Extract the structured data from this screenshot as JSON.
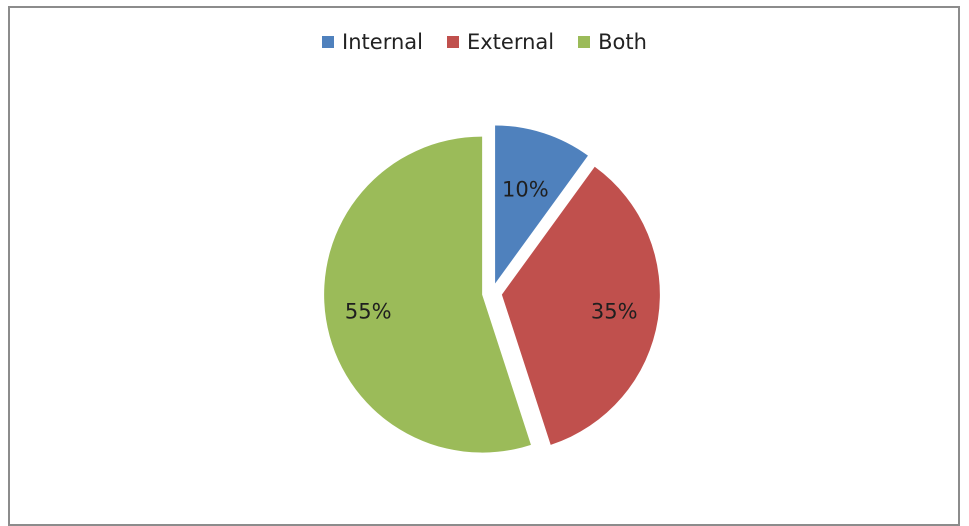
{
  "chart_data": {
    "type": "pie",
    "categories": [
      "Internal",
      "External",
      "Both"
    ],
    "values": [
      10,
      35,
      55
    ],
    "labels": [
      "10%",
      "35%",
      "55%"
    ],
    "colors": [
      "#4f81bd",
      "#c0504d",
      "#9bbb59"
    ],
    "legend_position": "top",
    "exploded": true
  }
}
